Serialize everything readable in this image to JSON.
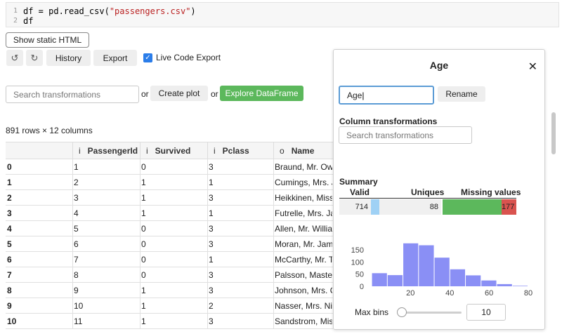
{
  "code": {
    "line1_num": "1",
    "line1_a": "df = pd.read_csv(",
    "line1_str": "\"passengers.csv\"",
    "line1_b": ")",
    "line2_num": "2",
    "line2": "df"
  },
  "toolbar": {
    "static_html": "Show static HTML",
    "undo_icon": "↺",
    "redo_icon": "↻",
    "history": "History",
    "export": "Export",
    "live_code_export": "Live Code Export",
    "checkbox_mark": "✓"
  },
  "actions": {
    "search_placeholder": "Search transformations",
    "or1": "or",
    "create_plot": "Create plot",
    "or2": "or",
    "explore": "Explore DataFrame"
  },
  "table": {
    "shape": "891 rows × 12 columns",
    "columns": [
      {
        "type": "i",
        "name": "PassengerId"
      },
      {
        "type": "i",
        "name": "Survived"
      },
      {
        "type": "i",
        "name": "Pclass"
      },
      {
        "type": "o",
        "name": "Name"
      }
    ],
    "rows": [
      [
        "0",
        "1",
        "0",
        "3",
        "Braund, Mr. Owe..."
      ],
      [
        "1",
        "2",
        "1",
        "1",
        "Cumings, Mrs. J..."
      ],
      [
        "2",
        "3",
        "1",
        "3",
        "Heikkinen, Miss. ..."
      ],
      [
        "3",
        "4",
        "1",
        "1",
        "Futrelle, Mrs. Jac..."
      ],
      [
        "4",
        "5",
        "0",
        "3",
        "Allen, Mr. William..."
      ],
      [
        "5",
        "6",
        "0",
        "3",
        "Moran, Mr. James"
      ],
      [
        "6",
        "7",
        "0",
        "1",
        "McCarthy, Mr. Ti..."
      ],
      [
        "7",
        "8",
        "0",
        "3",
        "Palsson, Master. ..."
      ],
      [
        "8",
        "9",
        "1",
        "3",
        "Johnson, Mrs. O..."
      ],
      [
        "9",
        "10",
        "1",
        "2",
        "Nasser, Mrs. Nic..."
      ],
      [
        "10",
        "11",
        "1",
        "3",
        "Sandstrom, Miss..."
      ]
    ]
  },
  "panel": {
    "title": "Age",
    "close_icon": "✕",
    "name_value": "Age",
    "rename": "Rename",
    "column_transformations": "Column transformations",
    "search_placeholder": "Search transformations",
    "summary": "Summary",
    "valid_label": "Valid",
    "uniques_label": "Uniques",
    "missing_label": "Missing values",
    "valid_value": "714",
    "uniques_value": "88",
    "missing_value": "177",
    "colors": {
      "valid": "#9fd1f5",
      "missing_ok": "#5cb85c",
      "missing_bad": "#d9534f",
      "hist": "#8a8ff5"
    },
    "max_bins_label": "Max bins",
    "max_bins_value": "10",
    "slider_fraction": 0.05
  },
  "chart_data": {
    "type": "bar",
    "title": "",
    "xlabel": "",
    "ylabel": "",
    "bin_edges": [
      0.42,
      8.38,
      16.34,
      24.29,
      32.25,
      40.21,
      48.17,
      56.13,
      64.08,
      72.04,
      80.0
    ],
    "values": [
      54,
      46,
      177,
      169,
      118,
      70,
      45,
      24,
      9,
      2
    ],
    "xticks": [
      20,
      40,
      60,
      80
    ],
    "yticks": [
      0,
      50,
      100,
      150
    ],
    "xlim": [
      -3,
      85
    ],
    "ylim": [
      0,
      185
    ]
  }
}
